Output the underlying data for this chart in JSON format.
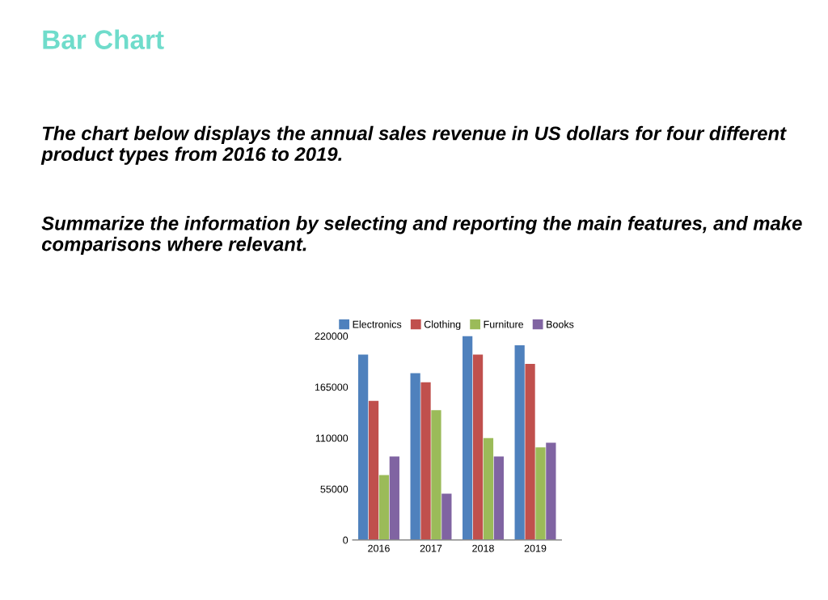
{
  "chart_data": {
    "type": "bar",
    "title": "Bar Chart",
    "subtitle": "The chart below displays the annual sales revenue in US dollars for four different product types from 2016 to 2019.",
    "annotations": [
      "Summarize the information by selecting and reporting the main features, and make comparisons where relevant."
    ],
    "categories": [
      "2016",
      "2017",
      "2018",
      "2019"
    ],
    "series": [
      {
        "name": "Electronics",
        "color": "#4f81bd",
        "values": [
          200000,
          180000,
          220000,
          210000
        ]
      },
      {
        "name": "Clothing",
        "color": "#c0504d",
        "values": [
          150000,
          170000,
          200000,
          190000
        ]
      },
      {
        "name": "Furniture",
        "color": "#9bbb59",
        "values": [
          70000,
          140000,
          110000,
          100000
        ]
      },
      {
        "name": "Books",
        "color": "#8064a2",
        "values": [
          90000,
          50000,
          90000,
          105000
        ]
      }
    ],
    "ylim": [
      0,
      220000
    ],
    "yticks": [
      0,
      55000,
      110000,
      165000,
      220000
    ],
    "grid": false,
    "legend": "top"
  }
}
